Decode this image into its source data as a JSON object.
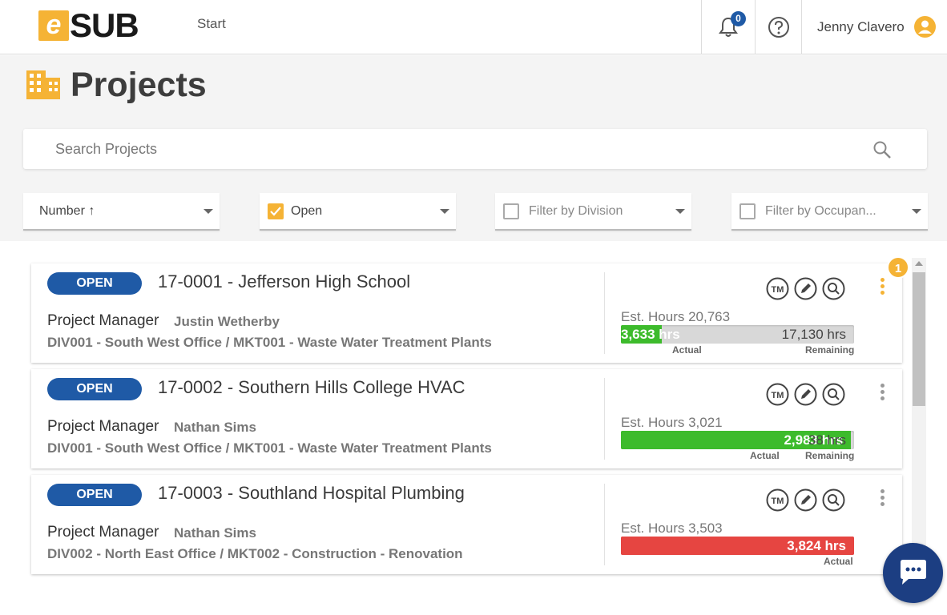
{
  "header": {
    "logo_e": "e",
    "logo_sub": "SUB",
    "nav_start": "Start",
    "notification_count": "0",
    "user_name": "Jenny Clavero"
  },
  "page": {
    "title": "Projects",
    "search_placeholder": "Search Projects"
  },
  "filters": {
    "sort": "Number ↑",
    "status": "Open",
    "division_placeholder": "Filter by Division",
    "occupancy_placeholder": "Filter by Occupan..."
  },
  "notification_badge": "1",
  "projects": [
    {
      "status": "OPEN",
      "title": "17-0001 - Jefferson High School",
      "pm_label": "Project Manager",
      "pm_name": "Justin Wetherby",
      "division": "DIV001 - South West Office / MKT001 - Waste Water Treatment Plants",
      "est_hours": "Est. Hours 20,763",
      "actual": "3,633 hrs",
      "remaining": "17,130 hrs",
      "actual_label": "Actual",
      "remaining_label": "Remaining",
      "actual_fraction": 0.175
    },
    {
      "status": "OPEN",
      "title": "17-0002 - Southern Hills College HVAC",
      "pm_label": "Project Manager",
      "pm_name": "Nathan Sims",
      "division": "DIV001 - South West Office / MKT001 - Waste Water Treatment Plants",
      "est_hours": "Est. Hours 3,021",
      "actual": "2,983 hrs",
      "remaining": "38 hrs",
      "actual_label": "Actual",
      "remaining_label": "Remaining",
      "actual_fraction": 0.987
    },
    {
      "status": "OPEN",
      "title": "17-0003 - Southland Hospital Plumbing",
      "pm_label": "Project Manager",
      "pm_name": "Nathan Sims",
      "division": "DIV002 - North East Office / MKT002 - Construction - Renovation",
      "est_hours": "Est. Hours 3,503",
      "actual": "3,824 hrs",
      "actual_label": "Actual",
      "actual_fraction": 1.0
    }
  ],
  "colors": {
    "brand_yellow": "#f5b335",
    "status_blue": "#1f5aa6",
    "bar_green": "#3dbb2c",
    "bar_red": "#e64541",
    "chat_navy": "#1c3e82"
  }
}
